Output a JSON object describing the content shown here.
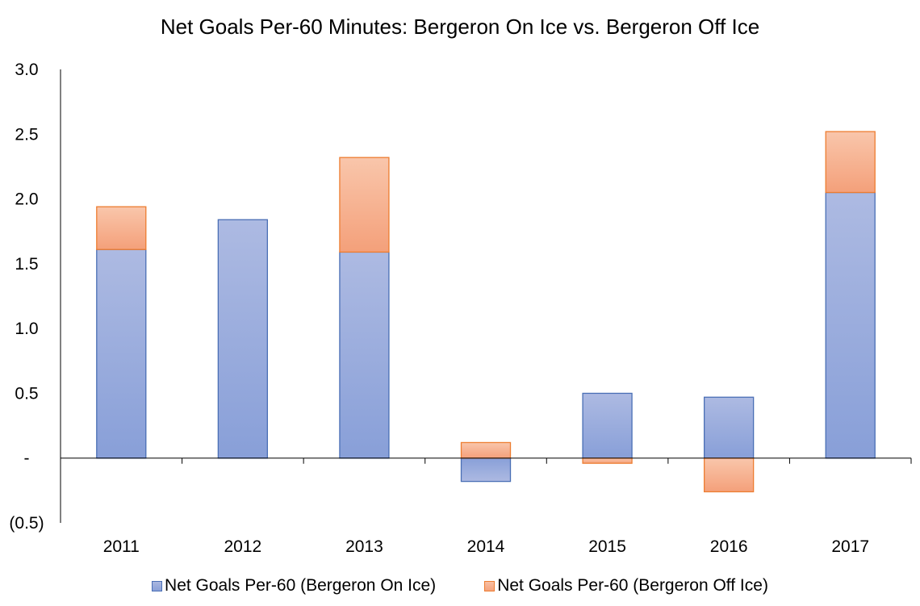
{
  "chart_data": {
    "type": "bar",
    "stacked": true,
    "title": "Net Goals Per-60 Minutes: Bergeron On Ice vs. Bergeron Off Ice",
    "xlabel": "",
    "ylabel": "",
    "categories": [
      "2011",
      "2012",
      "2013",
      "2014",
      "2015",
      "2016",
      "2017"
    ],
    "series": [
      {
        "name": "Net Goals Per-60 (Bergeron On Ice)",
        "values": [
          1.61,
          1.84,
          1.59,
          -0.18,
          0.5,
          0.47,
          2.05
        ],
        "color": "#8fa5da",
        "stroke": "#4a6fb5"
      },
      {
        "name": "Net Goals Per-60 (Bergeron Off Ice)",
        "values": [
          0.33,
          0.0,
          0.73,
          0.12,
          -0.04,
          -0.26,
          0.47
        ],
        "color": "#f6ab88",
        "stroke": "#ed7d31"
      }
    ],
    "ylim": [
      -0.5,
      3.0
    ],
    "yticks": [
      {
        "value": 3.0,
        "label": "3.0"
      },
      {
        "value": 2.5,
        "label": "2.5"
      },
      {
        "value": 2.0,
        "label": "2.0"
      },
      {
        "value": 1.5,
        "label": "1.5"
      },
      {
        "value": 1.0,
        "label": "1.0"
      },
      {
        "value": 0.5,
        "label": "0.5"
      },
      {
        "value": 0.0,
        "label": "-"
      },
      {
        "value": -0.5,
        "label": "(0.5)"
      }
    ],
    "grid": false,
    "legend_position": "bottom"
  }
}
